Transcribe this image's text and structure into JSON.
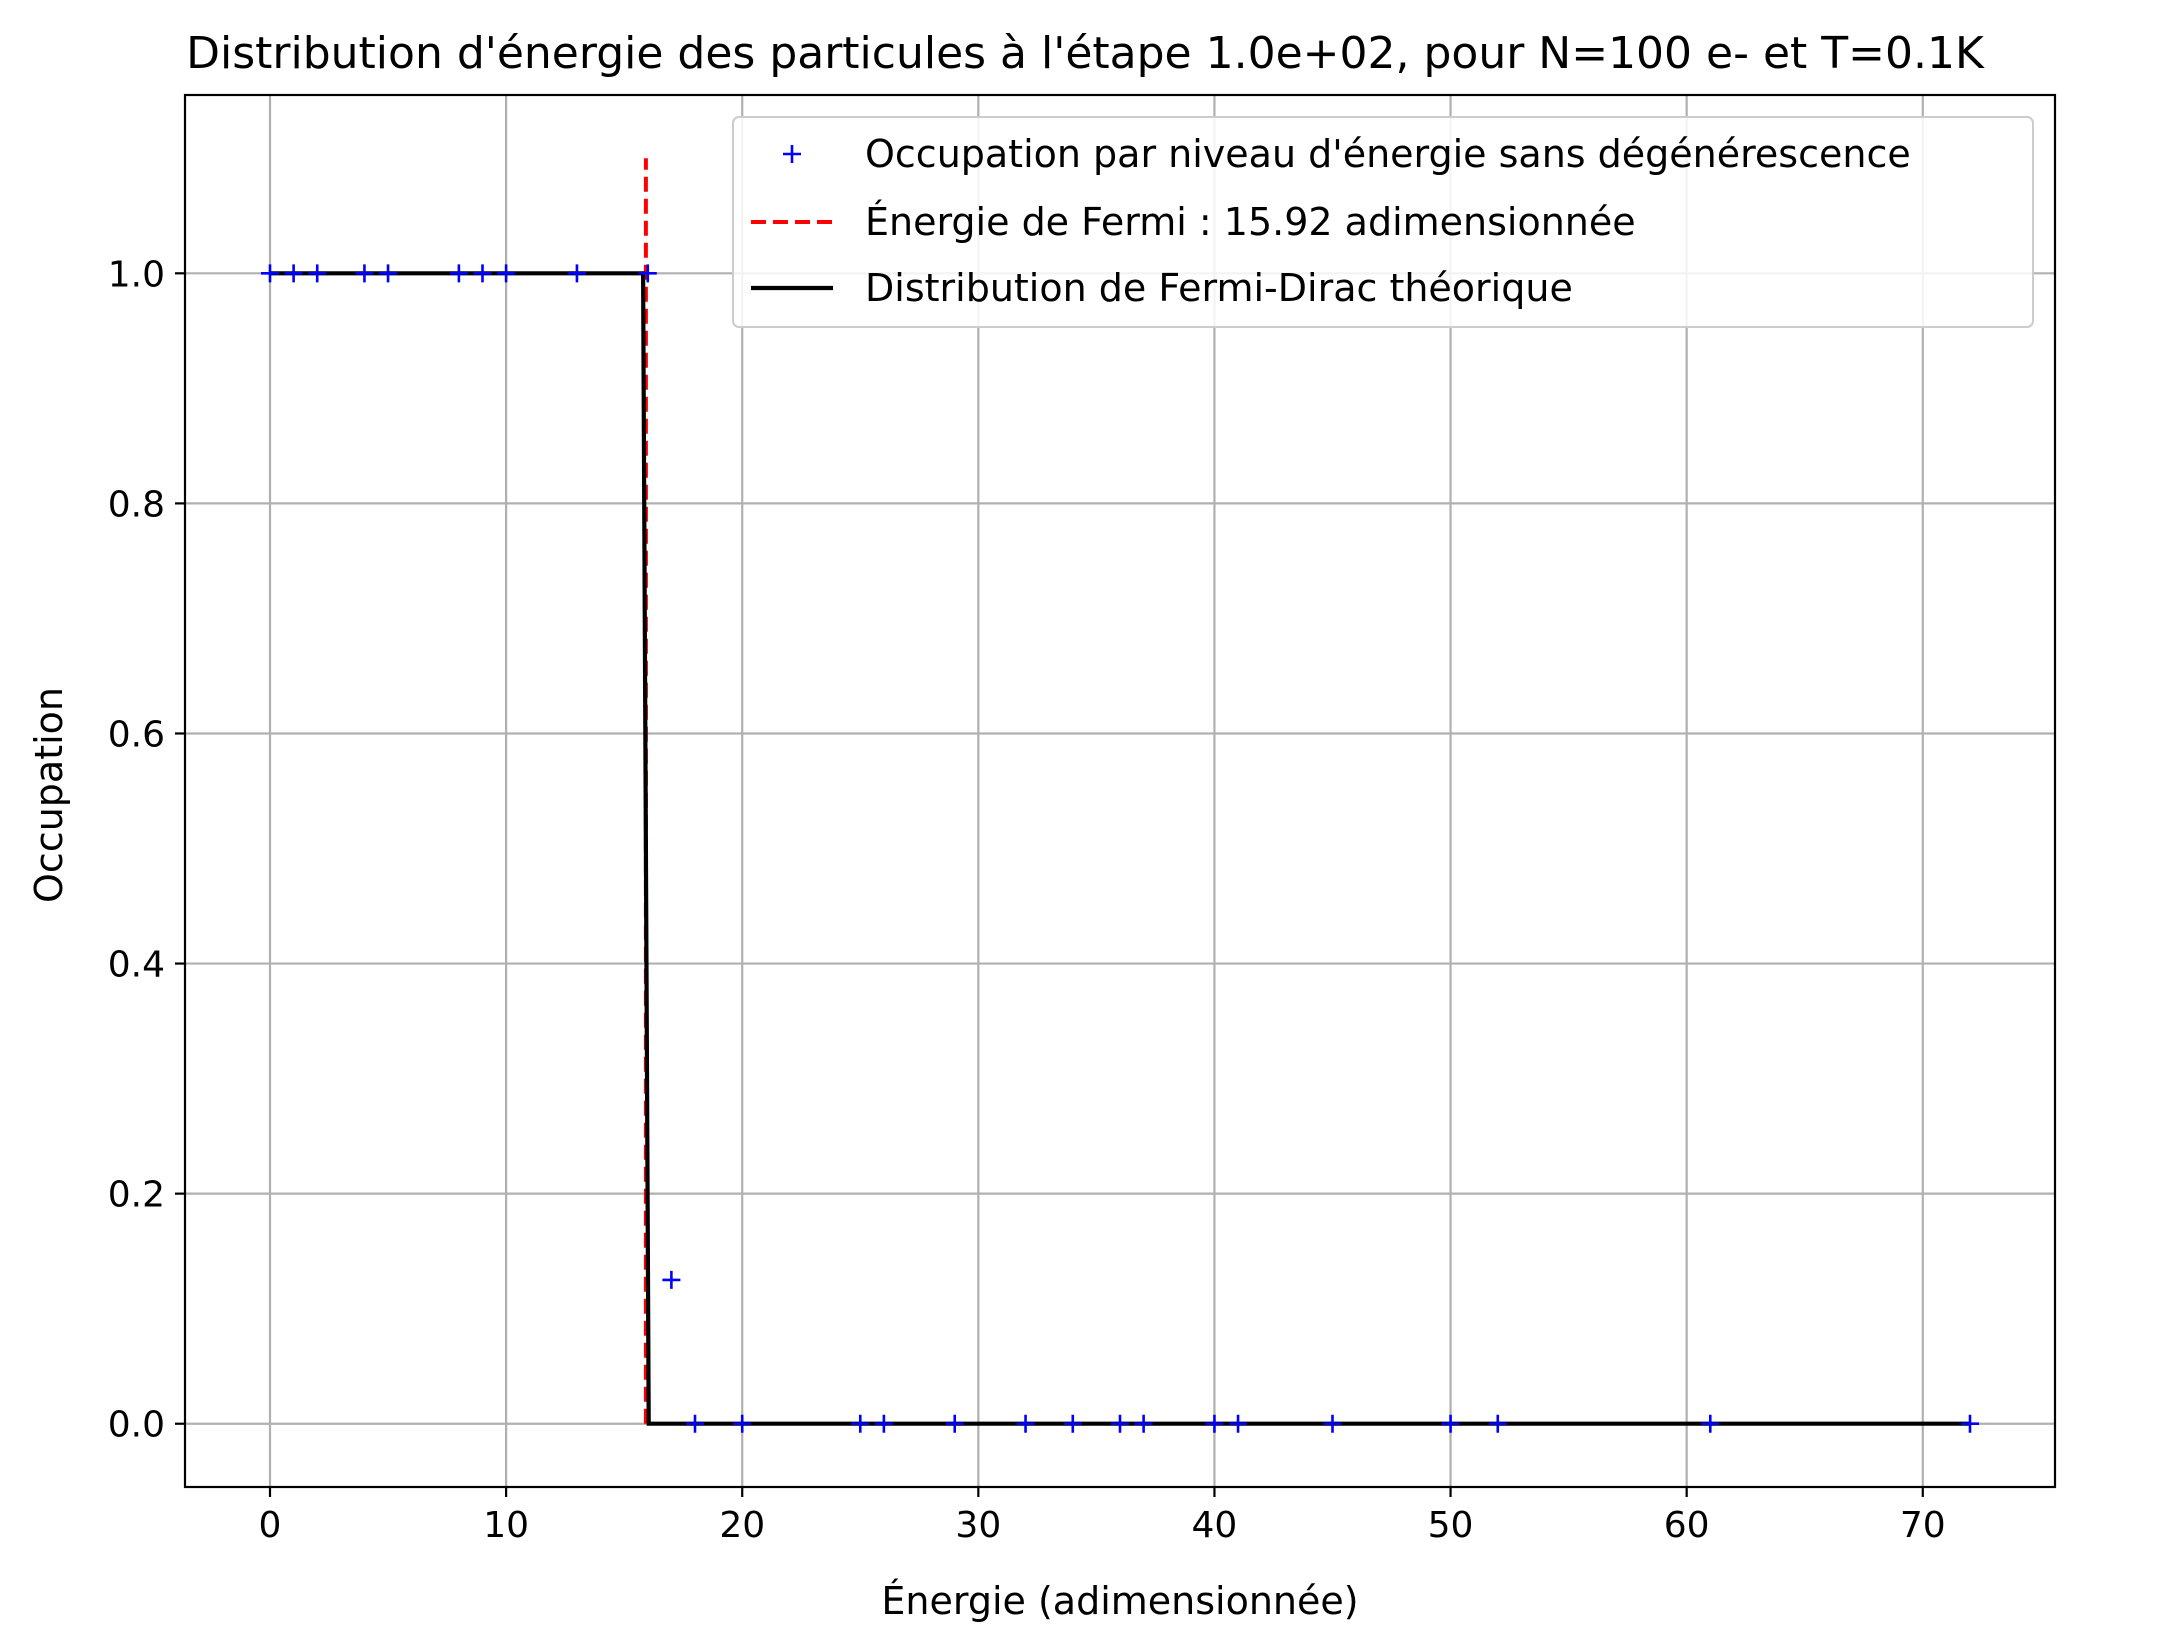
{
  "chart_data": {
    "type": "line",
    "title": "Distribution d'énergie des particules à l'étape 1.0e+02, pour N=100 e- et T=0.1K",
    "xlabel": "Énergie (adimensionnée)",
    "ylabel": "Occupation",
    "xlim": [
      -3.6,
      75.6
    ],
    "ylim": [
      -0.055,
      1.155
    ],
    "xticks": [
      0,
      10,
      20,
      30,
      40,
      50,
      60,
      70
    ],
    "xtick_labels": [
      "0",
      "10",
      "20",
      "30",
      "40",
      "50",
      "60",
      "70"
    ],
    "yticks": [
      0.0,
      0.2,
      0.4,
      0.6,
      0.8,
      1.0
    ],
    "ytick_labels": [
      "0.0",
      "0.2",
      "0.4",
      "0.6",
      "0.8",
      "1.0"
    ],
    "grid": true,
    "legend_position": "top-right",
    "series": [
      {
        "name": "Occupation par niveau d'énergie sans dégénérescence",
        "kind": "scatter",
        "marker": "+",
        "color": "#0000ff",
        "x": [
          0,
          1,
          2,
          4,
          5,
          8,
          9,
          10,
          13,
          16,
          17,
          18,
          20,
          25,
          26,
          29,
          32,
          34,
          36,
          37,
          40,
          41,
          45,
          50,
          52,
          61,
          72
        ],
        "y": [
          1,
          1,
          1,
          1,
          1,
          1,
          1,
          1,
          1,
          1,
          0.125,
          0,
          0,
          0,
          0,
          0,
          0,
          0,
          0,
          0,
          0,
          0,
          0,
          0,
          0,
          0,
          0
        ]
      },
      {
        "name": "Énergie de Fermi : 15.92 adimensionnée",
        "kind": "vline",
        "style": "dashed",
        "color": "#ff0000",
        "x": 15.92,
        "y_range": [
          0,
          1.1
        ]
      },
      {
        "name": "Distribution de Fermi-Dirac théorique",
        "kind": "line",
        "color": "#000000",
        "x": [
          0,
          15.8,
          15.92,
          16.04,
          72
        ],
        "y": [
          1,
          1,
          0.5,
          0,
          0
        ]
      }
    ]
  }
}
